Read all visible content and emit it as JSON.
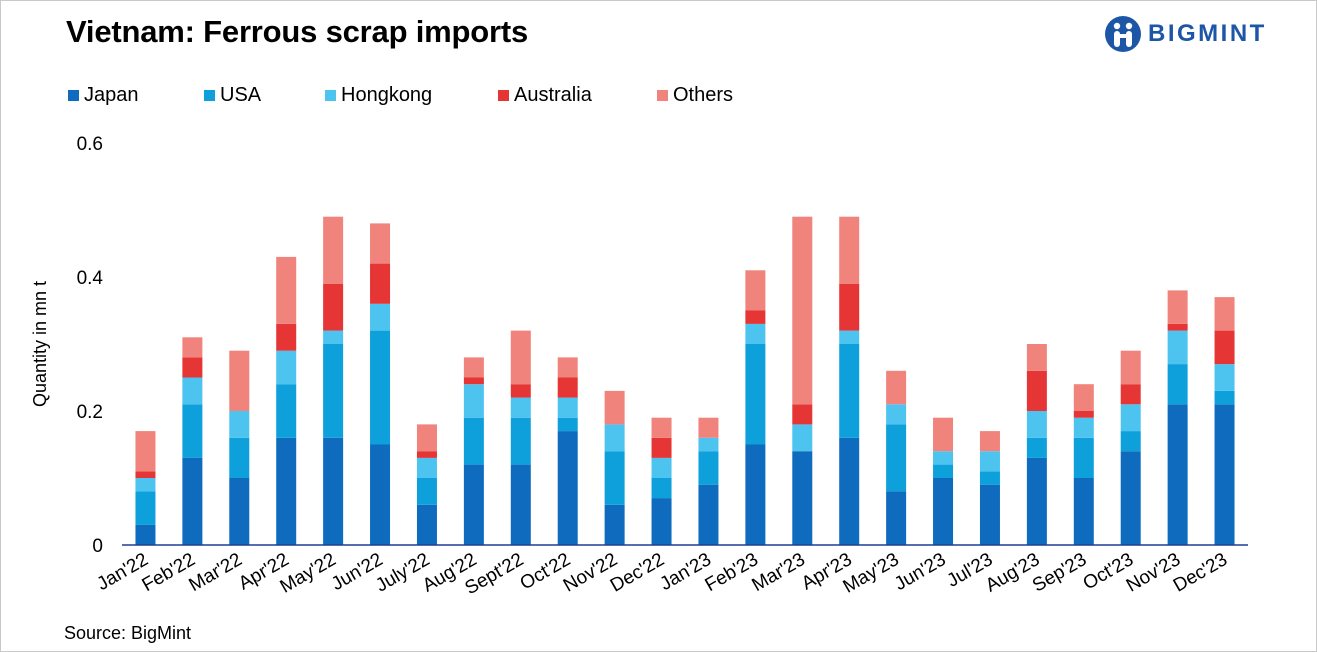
{
  "title": "Vietnam: Ferrous scrap imports",
  "logo_text": "BIGMINT",
  "source": "Source: BigMint",
  "colors": {
    "Japan": "#0e6bbd",
    "USA": "#0ea0da",
    "Hongkong": "#4dc3ef",
    "Australia": "#e53535",
    "Others": "#f0837b",
    "logo": "#1d56a6"
  },
  "chart_data": {
    "type": "bar",
    "stacked": true,
    "ylabel": "Quantity in mn t",
    "xlabel": "",
    "ylim": [
      0,
      0.6
    ],
    "yticks": [
      "0",
      "0.2",
      "0.4",
      "0.6"
    ],
    "legend_position": "top-left",
    "grid": false,
    "categories": [
      "Jan'22",
      "Feb'22",
      "Mar'22",
      "Apr'22",
      "May'22",
      "Jun'22",
      "July'22",
      "Aug'22",
      "Sept'22",
      "Oct'22",
      "Nov'22",
      "Dec'22",
      "Jan'23",
      "Feb'23",
      "Mar'23",
      "Apr'23",
      "May'23",
      "Jun'23",
      "Jul'23",
      "Aug'23",
      "Sep'23",
      "Oct'23",
      "Nov'23",
      "Dec'23"
    ],
    "series": [
      {
        "name": "Japan",
        "values": [
          0.03,
          0.13,
          0.1,
          0.16,
          0.16,
          0.15,
          0.06,
          0.12,
          0.12,
          0.17,
          0.06,
          0.07,
          0.09,
          0.15,
          0.14,
          0.16,
          0.08,
          0.1,
          0.09,
          0.13,
          0.1,
          0.14,
          0.21,
          0.21
        ]
      },
      {
        "name": "USA",
        "values": [
          0.05,
          0.08,
          0.06,
          0.08,
          0.14,
          0.17,
          0.04,
          0.07,
          0.07,
          0.02,
          0.08,
          0.03,
          0.05,
          0.15,
          0.0,
          0.14,
          0.1,
          0.02,
          0.02,
          0.03,
          0.06,
          0.03,
          0.06,
          0.02
        ]
      },
      {
        "name": "Hongkong",
        "values": [
          0.02,
          0.04,
          0.04,
          0.05,
          0.02,
          0.04,
          0.03,
          0.05,
          0.03,
          0.03,
          0.04,
          0.03,
          0.02,
          0.03,
          0.04,
          0.02,
          0.03,
          0.02,
          0.03,
          0.04,
          0.03,
          0.04,
          0.05,
          0.04
        ]
      },
      {
        "name": "Australia",
        "values": [
          0.01,
          0.03,
          0.0,
          0.04,
          0.07,
          0.06,
          0.01,
          0.01,
          0.02,
          0.03,
          0.0,
          0.03,
          0.0,
          0.02,
          0.03,
          0.07,
          0.0,
          0.0,
          0.0,
          0.06,
          0.01,
          0.03,
          0.01,
          0.05
        ]
      },
      {
        "name": "Others",
        "values": [
          0.06,
          0.03,
          0.09,
          0.1,
          0.1,
          0.06,
          0.04,
          0.03,
          0.08,
          0.03,
          0.05,
          0.03,
          0.03,
          0.06,
          0.28,
          0.1,
          0.05,
          0.05,
          0.03,
          0.04,
          0.04,
          0.05,
          0.05,
          0.05
        ]
      }
    ]
  }
}
